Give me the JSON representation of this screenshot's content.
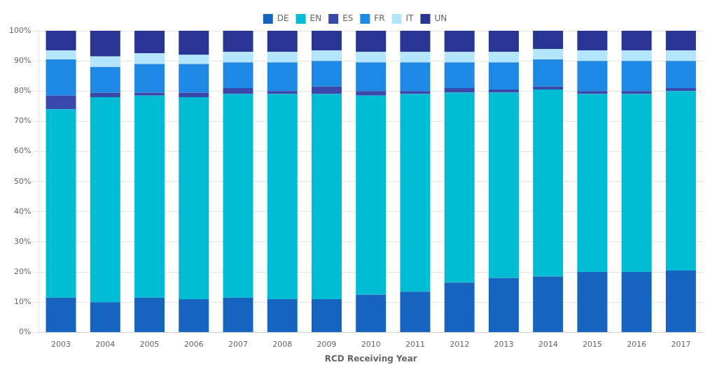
{
  "chart_data": {
    "type": "bar",
    "stacked": true,
    "x_label": "RCD Receiving Year",
    "categories": [
      "2003",
      "2004",
      "2005",
      "2006",
      "2007",
      "2008",
      "2009",
      "2010",
      "2011",
      "2012",
      "2013",
      "2014",
      "2015",
      "2016",
      "2017"
    ],
    "series": [
      {
        "name": "DE",
        "color": "#1565c0",
        "values": [
          11.5,
          10.0,
          11.5,
          11.0,
          11.5,
          11.0,
          11.0,
          12.5,
          13.5,
          16.5,
          18.0,
          18.5,
          20.0,
          20.0,
          20.5
        ]
      },
      {
        "name": "EN",
        "color": "#00bcd4",
        "values": [
          62.5,
          68.0,
          67.0,
          67.0,
          67.5,
          68.0,
          68.0,
          66.0,
          65.5,
          63.0,
          61.5,
          62.0,
          59.0,
          59.0,
          59.5
        ]
      },
      {
        "name": "ES",
        "color": "#3949ab",
        "values": [
          4.5,
          1.5,
          1.0,
          1.5,
          2.0,
          1.0,
          2.5,
          1.5,
          1.0,
          1.5,
          1.0,
          1.0,
          1.0,
          1.0,
          1.0
        ]
      },
      {
        "name": "FR",
        "color": "#1e88e5",
        "values": [
          12.0,
          8.5,
          9.5,
          9.5,
          8.5,
          9.5,
          8.5,
          9.5,
          9.5,
          8.5,
          9.0,
          9.0,
          10.0,
          10.0,
          9.0
        ]
      },
      {
        "name": "IT",
        "color": "#b3e5fc",
        "values": [
          3.0,
          3.5,
          3.5,
          3.0,
          3.5,
          3.5,
          3.5,
          3.5,
          3.5,
          3.5,
          3.5,
          3.5,
          3.5,
          3.5,
          3.5
        ]
      },
      {
        "name": "UN",
        "color": "#283593",
        "values": [
          6.5,
          8.5,
          7.5,
          8.0,
          7.0,
          7.0,
          6.5,
          7.0,
          7.0,
          7.0,
          7.0,
          6.0,
          6.5,
          6.5,
          6.5
        ]
      }
    ],
    "ylim": [
      0,
      100
    ],
    "yticks": [
      {
        "value": 0,
        "label": "0%"
      },
      {
        "value": 10,
        "label": "10%"
      },
      {
        "value": 20,
        "label": "20%"
      },
      {
        "value": 30,
        "label": "30%"
      },
      {
        "value": 40,
        "label": "40%"
      },
      {
        "value": 50,
        "label": "50%"
      },
      {
        "value": 60,
        "label": "60%"
      },
      {
        "value": 70,
        "label": "70%"
      },
      {
        "value": 80,
        "label": "80%"
      },
      {
        "value": 90,
        "label": "90%"
      },
      {
        "value": 100,
        "label": "100%"
      }
    ],
    "grid": true,
    "legend": "top"
  }
}
